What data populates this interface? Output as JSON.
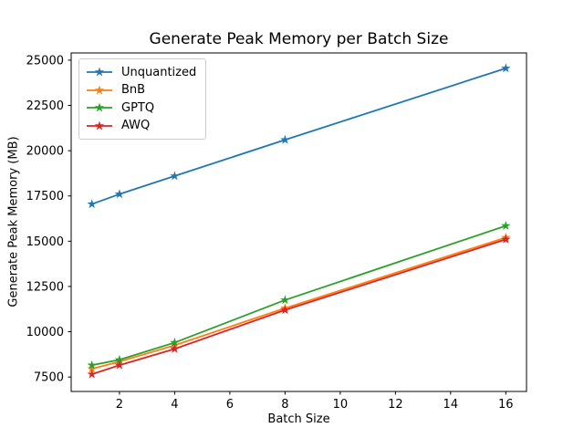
{
  "figure": {
    "title": "Generate Peak Memory per Batch Size",
    "xlabel": "Batch Size",
    "ylabel": "Generate Peak Memory (MB)",
    "background_color": "#ffffff",
    "spine_color": "#000000",
    "text_color": "#000000",
    "legend_border_color": "#cccccc"
  },
  "chart_data": {
    "type": "line",
    "title": "Generate Peak Memory per Batch Size",
    "xlabel": "Batch Size",
    "ylabel": "Generate Peak Memory (MB)",
    "x": [
      1,
      2,
      4,
      8,
      16
    ],
    "series": [
      {
        "name": "Unquantized",
        "color": "#1f77b4",
        "marker": "star",
        "values": [
          17050,
          17600,
          18600,
          20600,
          24550
        ]
      },
      {
        "name": "BnB",
        "color": "#ff7f0e",
        "marker": "star",
        "values": [
          7950,
          8350,
          9250,
          11300,
          15200
        ]
      },
      {
        "name": "GPTQ",
        "color": "#2ca02c",
        "marker": "star",
        "values": [
          8150,
          8450,
          9400,
          11750,
          15850
        ]
      },
      {
        "name": "AWQ",
        "color": "#d62728",
        "marker": "star",
        "values": [
          7650,
          8150,
          9050,
          11200,
          15100
        ]
      }
    ],
    "xlim": [
      0.25,
      16.75
    ],
    "ylim": [
      6700,
      25400
    ],
    "xticks": [
      2,
      4,
      6,
      8,
      10,
      12,
      14,
      16
    ],
    "yticks": [
      7500,
      10000,
      12500,
      15000,
      17500,
      20000,
      22500,
      25000
    ],
    "grid": false,
    "legend_position": "upper left"
  }
}
